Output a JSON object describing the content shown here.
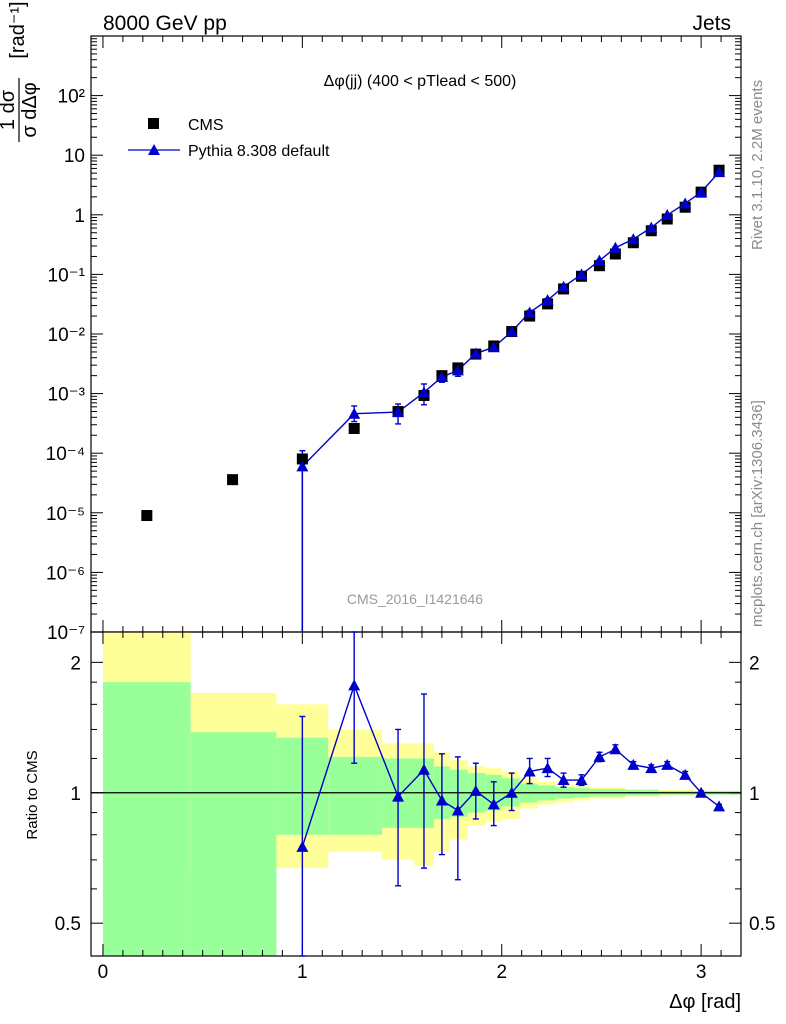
{
  "header": {
    "left": "8000 GeV pp",
    "right": "Jets"
  },
  "side_labels": {
    "rivet": "Rivet 3.1.10,  2.2M events",
    "mcplots": "mcplots.cern.ch [arXiv:1306.3436]"
  },
  "watermark": "CMS_2016_I1421646",
  "colors": {
    "data": "#000000",
    "mc": "#0000cc",
    "band_inner": "#99ff99",
    "band_outer": "#ffff99"
  },
  "chart_data": [
    {
      "type": "scatter",
      "title": "Δφ(jj) (400 < pTlead <  500)",
      "xlabel": "Δφ [rad]",
      "ylabel": "1/σ dσ/dΔφ [rad⁻¹]",
      "yscale": "log",
      "xlim": [
        -0.06,
        3.2
      ],
      "ylim": [
        1e-07,
        1000
      ],
      "legend": {
        "placement": "top-left",
        "entries": [
          "CMS",
          "Pythia 8.308 default"
        ]
      },
      "x_ticks": [
        "0",
        "1",
        "2",
        "3"
      ],
      "y_ticks": [
        "10⁻⁷",
        "10⁻⁶",
        "10⁻⁵",
        "10⁻⁴",
        "10⁻³",
        "10⁻²",
        "10⁻¹",
        "1",
        "10",
        "10²"
      ],
      "series": [
        {
          "name": "CMS",
          "marker": "square",
          "x": [
            0.22,
            0.65,
            1.0,
            1.26,
            1.48,
            1.61,
            1.7,
            1.78,
            1.87,
            1.96,
            2.05,
            2.14,
            2.23,
            2.31,
            2.4,
            2.49,
            2.57,
            2.66,
            2.75,
            2.83,
            2.92,
            3.0,
            3.09
          ],
          "y": [
            9e-06,
            3.6e-05,
            8e-05,
            0.00026,
            0.0005,
            0.00093,
            0.002,
            0.0027,
            0.0046,
            0.0063,
            0.011,
            0.02,
            0.032,
            0.057,
            0.093,
            0.14,
            0.22,
            0.34,
            0.54,
            0.85,
            1.34,
            2.4,
            5.6
          ]
        },
        {
          "name": "Pythia 8.308 default",
          "marker": "triangle",
          "x": [
            1.0,
            1.26,
            1.48,
            1.61,
            1.7,
            1.78,
            1.87,
            1.96,
            2.05,
            2.14,
            2.23,
            2.31,
            2.4,
            2.49,
            2.57,
            2.66,
            2.75,
            2.83,
            2.92,
            3.0,
            3.09
          ],
          "y": [
            6e-05,
            0.00046,
            0.00049,
            0.00105,
            0.0019,
            0.00245,
            0.0047,
            0.006,
            0.011,
            0.023,
            0.037,
            0.062,
            0.1,
            0.17,
            0.28,
            0.39,
            0.61,
            0.99,
            1.55,
            2.4,
            5.2
          ],
          "yerr_lo": [
            6e-05,
            0.00012,
            0.00018,
            0.0004,
            0.00035,
            0.0005,
            0.0005,
            0.0006,
            0.001,
            0.002,
            0.0025,
            0.004,
            0.004,
            0.007,
            0.01,
            0.015,
            0.02,
            0.03,
            0.04,
            0.06,
            0.09
          ],
          "yerr_hi": [
            5e-05,
            0.00016,
            0.00018,
            0.0004,
            0.00035,
            0.0005,
            0.0005,
            0.0006,
            0.001,
            0.002,
            0.0025,
            0.004,
            0.004,
            0.007,
            0.01,
            0.015,
            0.02,
            0.03,
            0.04,
            0.06,
            0.09
          ]
        }
      ]
    },
    {
      "type": "line",
      "ylabel": "Ratio to CMS",
      "yscale": "log",
      "xlim": [
        -0.06,
        3.2
      ],
      "ylim": [
        0.42,
        2.35
      ],
      "reference_line": 1,
      "y_ticks": [
        "0.5",
        "1",
        "2"
      ],
      "bands": {
        "edges": [
          0.0,
          0.44,
          0.87,
          1.13,
          1.4,
          1.56,
          1.66,
          1.74,
          1.83,
          1.92,
          2.0,
          2.09,
          2.18,
          2.27,
          2.36,
          2.44,
          2.53,
          2.62,
          2.7,
          2.79,
          2.88,
          2.96,
          3.05,
          3.2
        ],
        "outer_lo": [
          0.3,
          0.67,
          0.67,
          0.73,
          0.7,
          0.68,
          0.73,
          0.78,
          0.84,
          0.86,
          0.87,
          0.92,
          0.94,
          0.95,
          0.96,
          0.97,
          0.97,
          0.98,
          0.98,
          0.985,
          0.985,
          0.99,
          0.99
        ],
        "outer_hi": [
          2.8,
          1.7,
          1.6,
          1.4,
          1.3,
          1.3,
          1.24,
          1.19,
          1.15,
          1.14,
          1.12,
          1.08,
          1.06,
          1.05,
          1.04,
          1.03,
          1.03,
          1.02,
          1.02,
          1.015,
          1.015,
          1.01,
          1.01
        ],
        "inner_lo": [
          0.3,
          0.3,
          0.8,
          0.8,
          0.83,
          0.83,
          0.87,
          0.88,
          0.9,
          0.91,
          0.93,
          0.95,
          0.96,
          0.97,
          0.975,
          0.98,
          0.98,
          0.985,
          0.985,
          0.99,
          0.99,
          0.99,
          0.99
        ],
        "inner_hi": [
          1.8,
          1.38,
          1.34,
          1.21,
          1.2,
          1.2,
          1.15,
          1.13,
          1.11,
          1.1,
          1.08,
          1.05,
          1.04,
          1.03,
          1.025,
          1.02,
          1.02,
          1.015,
          1.015,
          1.01,
          1.01,
          1.01,
          1.01
        ]
      },
      "series": [
        {
          "name": "Pythia 8.308 default",
          "x": [
            1.0,
            1.26,
            1.48,
            1.61,
            1.7,
            1.78,
            1.87,
            1.96,
            2.05,
            2.14,
            2.23,
            2.31,
            2.4,
            2.49,
            2.57,
            2.66,
            2.75,
            2.83,
            2.92,
            3.0,
            3.09
          ],
          "y": [
            0.75,
            1.77,
            0.98,
            1.13,
            0.96,
            0.91,
            1.01,
            0.94,
            1.0,
            1.12,
            1.14,
            1.07,
            1.07,
            1.21,
            1.26,
            1.16,
            1.14,
            1.16,
            1.1,
            1.0,
            0.93
          ],
          "yerr_lo": [
            0.4,
            0.6,
            0.37,
            0.46,
            0.24,
            0.28,
            0.14,
            0.1,
            0.09,
            0.07,
            0.05,
            0.04,
            0.03,
            0.03,
            0.02,
            0.02,
            0.02,
            0.02,
            0.02,
            0.01,
            0.01
          ],
          "yerr_hi": [
            0.75,
            0.65,
            0.42,
            0.56,
            0.27,
            0.3,
            0.16,
            0.12,
            0.11,
            0.08,
            0.06,
            0.04,
            0.03,
            0.03,
            0.03,
            0.02,
            0.02,
            0.02,
            0.02,
            0.01,
            0.01
          ]
        }
      ]
    }
  ]
}
